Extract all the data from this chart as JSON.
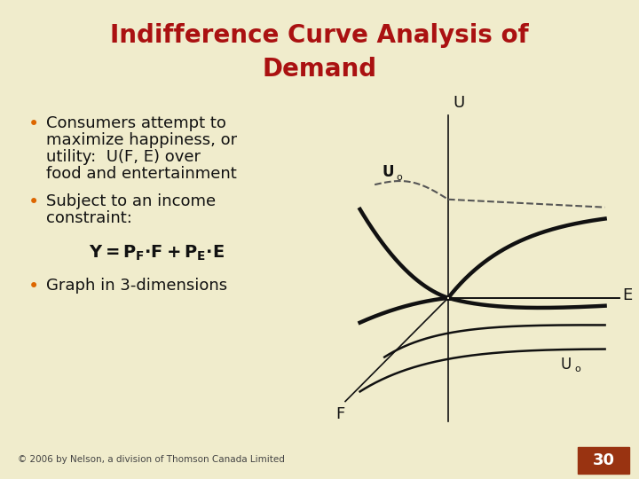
{
  "bg_color": "#f0eccc",
  "title_line1": "Indifference Curve Analysis of",
  "title_line2": "Demand",
  "title_color": "#aa1111",
  "title_fontsize": 20,
  "bullet_color": "#dd6600",
  "text_color": "#111111",
  "footer": "© 2006 by Nelson, a division of Thomson Canada Limited",
  "page_num": "30",
  "page_bg": "#993311",
  "curve_color": "#111111",
  "dashed_color": "#555555",
  "axis_color": "#111111",
  "thin_lw": 1.8,
  "thick_lw": 3.2,
  "axis_lw": 1.2
}
